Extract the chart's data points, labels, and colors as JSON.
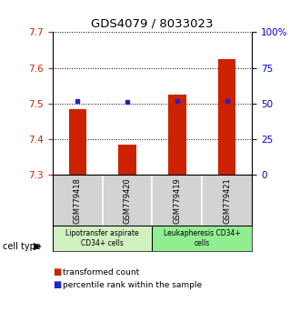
{
  "title": "GDS4079 / 8033023",
  "samples": [
    "GSM779418",
    "GSM779420",
    "GSM779419",
    "GSM779421"
  ],
  "transformed_counts": [
    7.485,
    7.385,
    7.525,
    7.625
  ],
  "percentile_ranks": [
    52,
    51,
    52,
    52
  ],
  "ylim_left": [
    7.3,
    7.7
  ],
  "ylim_right": [
    0,
    100
  ],
  "yticks_left": [
    7.3,
    7.4,
    7.5,
    7.6,
    7.7
  ],
  "yticks_right": [
    0,
    25,
    50,
    75,
    100
  ],
  "bar_color": "#cc2200",
  "dot_color": "#2222cc",
  "bar_width": 0.35,
  "groups": [
    {
      "label": "Lipotransfer aspirate\nCD34+ cells",
      "samples": [
        0,
        1
      ],
      "color": "#d0f0c0"
    },
    {
      "label": "Leukapheresis CD34+\ncells",
      "samples": [
        2,
        3
      ],
      "color": "#90ee90"
    }
  ],
  "cell_type_label": "cell type",
  "legend_bar_label": "transformed count",
  "legend_dot_label": "percentile rank within the sample",
  "background_color": "#ffffff",
  "tick_color_left": "#cc2200",
  "tick_color_right": "#0000cc"
}
